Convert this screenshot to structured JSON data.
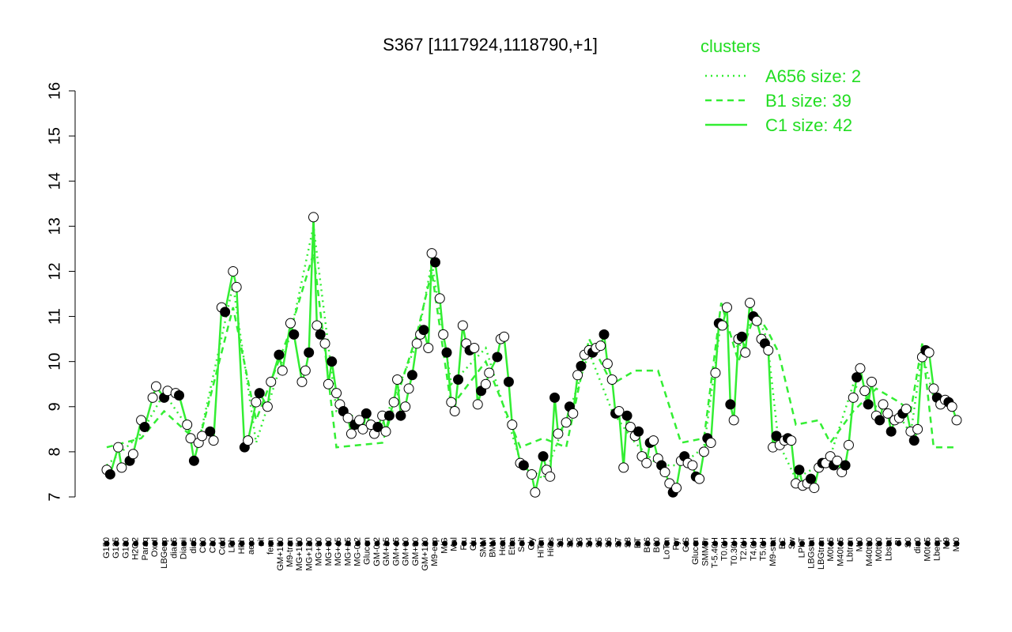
{
  "chart_data": {
    "type": "line",
    "title": "S367 [1117924,1118790,+1]",
    "xlabel": "",
    "ylabel": "",
    "ylim": [
      7,
      16
    ],
    "yticks": [
      7,
      8,
      9,
      10,
      11,
      12,
      13,
      14,
      15,
      16
    ],
    "legend": {
      "title": "clusters",
      "placement": "top-right",
      "entries": [
        {
          "label": "A656 size: 2",
          "style": "dotted"
        },
        {
          "label": "B1 size: 39",
          "style": "dashed"
        },
        {
          "label": "C1 size: 42",
          "style": "solid"
        }
      ]
    },
    "x_labels": [
      "G150",
      "G135",
      "G180",
      "H2O2",
      "Paraq",
      "Oxctl",
      "LBGexp",
      "dia15",
      "Diami",
      "dia5",
      "C90",
      "C30",
      "Cold",
      "LPh",
      "HPh",
      "aero",
      "nit",
      "ferm",
      "GM+150",
      "M9-tran",
      "MG+150",
      "MG+120",
      "MG+90",
      "MG+60",
      "MG+45",
      "MG+15",
      "MG-0.2",
      "Glucon",
      "GM-0.2",
      "GM+15",
      "GM+45",
      "GM+60",
      "GM+90",
      "GM+120",
      "M9-exp",
      "M/G",
      "Mal",
      "Fru",
      "Glu",
      "SMM",
      "BMM",
      "Heat",
      "Etha",
      "Salt",
      "Gly",
      "HiTm",
      "HiOs",
      "S1",
      "S2",
      "S3",
      "S4",
      "S5",
      "S6",
      "S7",
      "S8",
      "BT",
      "B36",
      "B60",
      "LoTm",
      "Pyr",
      "G/S",
      "Glucon",
      "SMMPr",
      "T-5.40H",
      "T0.0H",
      "T0.30H",
      "T2.0H",
      "T4.0H",
      "T5.0H",
      "M9-stat",
      "BC",
      "Sw",
      "LPhT",
      "LBGstat",
      "LBGtran",
      "M0t45",
      "M40t45",
      "Lbtran",
      "Mt0",
      "M40t90",
      "M0t90",
      "Lbstat",
      "BI",
      "S0",
      "dia0",
      "M0t45",
      "Lbexp",
      "M9",
      "Mt0"
    ],
    "series": [
      {
        "name": "C1 size: 42",
        "marker": "circle",
        "points": [
          [
            0,
            7.6
          ],
          [
            0.3,
            7.5
          ],
          [
            1,
            8.1
          ],
          [
            1.3,
            7.65
          ],
          [
            2,
            7.8
          ],
          [
            2.3,
            7.95
          ],
          [
            3,
            8.7
          ],
          [
            3.3,
            8.55
          ],
          [
            4,
            9.2
          ],
          [
            4.3,
            9.45
          ],
          [
            5,
            9.2
          ],
          [
            5.3,
            9.35
          ],
          [
            6,
            9.3
          ],
          [
            6.3,
            9.25
          ],
          [
            7,
            8.6
          ],
          [
            7.3,
            8.3
          ],
          [
            7.6,
            7.8
          ],
          [
            8,
            8.2
          ],
          [
            8.3,
            8.35
          ],
          [
            9,
            8.45
          ],
          [
            9.3,
            8.25
          ],
          [
            10,
            11.2
          ],
          [
            10.3,
            11.1
          ],
          [
            11,
            12.0
          ],
          [
            11.3,
            11.65
          ],
          [
            12,
            8.1
          ],
          [
            12.3,
            8.25
          ],
          [
            13,
            9.1
          ],
          [
            13.3,
            9.3
          ],
          [
            14,
            9.0
          ],
          [
            14.3,
            9.55
          ],
          [
            15,
            10.15
          ],
          [
            15.3,
            9.8
          ],
          [
            16,
            10.85
          ],
          [
            16.3,
            10.6
          ],
          [
            17,
            9.55
          ],
          [
            17.3,
            9.8
          ],
          [
            17.6,
            10.2
          ],
          [
            18,
            13.2
          ],
          [
            18.3,
            10.8
          ],
          [
            18.6,
            10.6
          ],
          [
            19,
            10.4
          ],
          [
            19.3,
            9.5
          ],
          [
            19.6,
            10.0
          ],
          [
            20,
            9.3
          ],
          [
            20.3,
            9.05
          ],
          [
            20.6,
            8.9
          ],
          [
            21,
            8.75
          ],
          [
            21.3,
            8.4
          ],
          [
            21.6,
            8.6
          ],
          [
            22,
            8.7
          ],
          [
            22.3,
            8.5
          ],
          [
            22.6,
            8.85
          ],
          [
            23,
            8.6
          ],
          [
            23.3,
            8.4
          ],
          [
            23.6,
            8.55
          ],
          [
            24,
            8.8
          ],
          [
            24.3,
            8.45
          ],
          [
            24.6,
            8.8
          ],
          [
            25,
            9.1
          ],
          [
            25.3,
            9.6
          ],
          [
            25.6,
            8.8
          ],
          [
            26,
            9.0
          ],
          [
            26.3,
            9.4
          ],
          [
            26.6,
            9.7
          ],
          [
            27,
            10.4
          ],
          [
            27.3,
            10.6
          ],
          [
            27.6,
            10.7
          ],
          [
            28,
            10.3
          ],
          [
            28.3,
            12.4
          ],
          [
            28.6,
            12.2
          ],
          [
            29,
            11.4
          ],
          [
            29.3,
            10.6
          ],
          [
            29.6,
            10.2
          ],
          [
            30,
            9.1
          ],
          [
            30.3,
            8.9
          ],
          [
            30.6,
            9.6
          ],
          [
            31,
            10.8
          ],
          [
            31.3,
            10.4
          ],
          [
            31.6,
            10.25
          ],
          [
            32,
            10.3
          ],
          [
            32.3,
            9.05
          ],
          [
            32.6,
            9.35
          ],
          [
            33,
            9.5
          ],
          [
            33.3,
            9.75
          ],
          [
            34,
            10.1
          ],
          [
            34.3,
            10.5
          ],
          [
            34.6,
            10.55
          ],
          [
            35,
            9.55
          ],
          [
            35.3,
            8.6
          ],
          [
            36,
            7.75
          ],
          [
            36.3,
            7.7
          ],
          [
            37,
            7.5
          ],
          [
            37.3,
            7.1
          ],
          [
            38,
            7.9
          ],
          [
            38.3,
            7.6
          ],
          [
            38.6,
            7.45
          ],
          [
            39,
            9.2
          ],
          [
            39.3,
            8.4
          ],
          [
            40,
            8.65
          ],
          [
            40.3,
            9.0
          ],
          [
            40.6,
            8.85
          ],
          [
            41,
            9.7
          ],
          [
            41.3,
            9.9
          ],
          [
            41.6,
            10.15
          ],
          [
            42,
            10.25
          ],
          [
            42.3,
            10.2
          ],
          [
            42.6,
            10.3
          ],
          [
            43,
            10.35
          ],
          [
            43.3,
            10.6
          ],
          [
            43.6,
            9.95
          ],
          [
            44,
            9.6
          ],
          [
            44.3,
            8.85
          ],
          [
            44.6,
            8.9
          ],
          [
            45,
            7.65
          ],
          [
            45.3,
            8.8
          ],
          [
            45.6,
            8.55
          ],
          [
            46,
            8.35
          ],
          [
            46.3,
            8.45
          ],
          [
            46.6,
            7.9
          ],
          [
            47,
            7.75
          ],
          [
            47.3,
            8.2
          ],
          [
            47.6,
            8.25
          ],
          [
            48,
            7.85
          ],
          [
            48.3,
            7.7
          ],
          [
            48.6,
            7.55
          ],
          [
            49,
            7.3
          ],
          [
            49.3,
            7.1
          ],
          [
            49.6,
            7.2
          ],
          [
            50,
            7.8
          ],
          [
            50.3,
            7.9
          ],
          [
            50.6,
            7.75
          ],
          [
            51,
            7.7
          ],
          [
            51.3,
            7.45
          ],
          [
            51.6,
            7.4
          ],
          [
            52,
            8.0
          ],
          [
            52.3,
            8.3
          ],
          [
            52.6,
            8.2
          ],
          [
            53,
            9.75
          ],
          [
            53.3,
            10.85
          ],
          [
            53.6,
            10.8
          ],
          [
            54,
            11.2
          ],
          [
            54.3,
            9.05
          ],
          [
            54.6,
            8.7
          ],
          [
            55,
            10.5
          ],
          [
            55.3,
            10.55
          ],
          [
            55.6,
            10.2
          ],
          [
            56,
            11.3
          ],
          [
            56.3,
            11.0
          ],
          [
            56.6,
            10.9
          ],
          [
            57,
            10.5
          ],
          [
            57.3,
            10.4
          ],
          [
            57.6,
            10.25
          ],
          [
            58,
            8.1
          ],
          [
            58.3,
            8.35
          ],
          [
            58.6,
            8.15
          ],
          [
            59,
            8.25
          ],
          [
            59.3,
            8.3
          ],
          [
            59.6,
            8.25
          ],
          [
            60,
            7.3
          ],
          [
            60.3,
            7.6
          ],
          [
            60.6,
            7.25
          ],
          [
            61,
            7.3
          ],
          [
            61.3,
            7.4
          ],
          [
            61.6,
            7.2
          ],
          [
            62,
            7.65
          ],
          [
            62.3,
            7.75
          ],
          [
            62.6,
            7.75
          ],
          [
            63,
            7.9
          ],
          [
            63.3,
            7.7
          ],
          [
            63.6,
            7.8
          ],
          [
            64,
            7.55
          ],
          [
            64.3,
            7.7
          ],
          [
            64.6,
            8.15
          ],
          [
            65,
            9.2
          ],
          [
            65.3,
            9.65
          ],
          [
            65.6,
            9.85
          ],
          [
            66,
            9.35
          ],
          [
            66.3,
            9.05
          ],
          [
            66.6,
            9.55
          ],
          [
            67,
            8.8
          ],
          [
            67.3,
            8.7
          ],
          [
            67.6,
            9.05
          ],
          [
            68,
            8.85
          ],
          [
            68.3,
            8.45
          ],
          [
            68.6,
            8.7
          ],
          [
            69,
            8.75
          ],
          [
            69.3,
            8.85
          ],
          [
            69.6,
            8.95
          ],
          [
            70,
            8.45
          ],
          [
            70.3,
            8.25
          ],
          [
            70.6,
            8.5
          ],
          [
            71,
            10.1
          ],
          [
            71.3,
            10.25
          ],
          [
            71.6,
            10.2
          ],
          [
            72,
            9.4
          ],
          [
            72.3,
            9.2
          ],
          [
            72.6,
            9.05
          ],
          [
            73,
            9.15
          ],
          [
            73.3,
            9.1
          ],
          [
            73.6,
            9.0
          ],
          [
            74,
            8.7
          ]
        ]
      },
      {
        "name": "B1 size: 39",
        "points": [
          [
            0,
            8.1
          ],
          [
            3,
            8.3
          ],
          [
            5,
            8.9
          ],
          [
            8,
            8.2
          ],
          [
            11,
            11.2
          ],
          [
            13,
            8.7
          ],
          [
            16,
            10.7
          ],
          [
            18,
            12.4
          ],
          [
            20,
            8.1
          ],
          [
            24,
            8.2
          ],
          [
            27,
            10.6
          ],
          [
            28.3,
            12.0
          ],
          [
            30,
            9.0
          ],
          [
            33,
            10.0
          ],
          [
            36,
            8.1
          ],
          [
            38,
            8.3
          ],
          [
            40,
            8.1
          ],
          [
            42,
            10.5
          ],
          [
            44,
            9.5
          ],
          [
            46,
            9.8
          ],
          [
            48,
            9.8
          ],
          [
            50,
            8.2
          ],
          [
            52,
            8.3
          ],
          [
            53.5,
            11.3
          ],
          [
            55,
            10.0
          ],
          [
            56.5,
            11.1
          ],
          [
            57.5,
            10.7
          ],
          [
            58.5,
            10.2
          ],
          [
            60,
            8.6
          ],
          [
            62,
            8.7
          ],
          [
            63,
            8.2
          ],
          [
            65,
            8.9
          ],
          [
            67,
            9.4
          ],
          [
            69,
            9.1
          ],
          [
            70,
            8.9
          ],
          [
            71,
            10.4
          ],
          [
            72,
            8.1
          ],
          [
            74,
            8.1
          ]
        ]
      },
      {
        "name": "A656 size: 2",
        "points": [
          [
            0,
            7.7
          ],
          [
            3,
            8.4
          ],
          [
            5,
            9.3
          ],
          [
            8,
            8.2
          ],
          [
            11,
            11.7
          ],
          [
            13,
            8.2
          ],
          [
            16,
            10.6
          ],
          [
            18,
            13.0
          ],
          [
            20,
            8.9
          ],
          [
            24,
            8.6
          ],
          [
            27,
            10.4
          ],
          [
            28.3,
            12.2
          ],
          [
            30,
            9.5
          ],
          [
            33,
            10.3
          ],
          [
            36,
            7.8
          ],
          [
            38,
            7.4
          ],
          [
            40,
            8.7
          ],
          [
            42,
            10.2
          ],
          [
            44,
            8.9
          ],
          [
            46,
            8.2
          ],
          [
            48,
            7.7
          ],
          [
            50,
            7.7
          ],
          [
            52,
            8.1
          ],
          [
            53.5,
            10.9
          ],
          [
            55,
            10.3
          ],
          [
            56.5,
            11.1
          ],
          [
            57.5,
            10.5
          ],
          [
            58.5,
            8.2
          ],
          [
            60,
            7.4
          ],
          [
            62,
            7.7
          ],
          [
            63,
            7.9
          ],
          [
            65,
            9.5
          ],
          [
            67,
            9.0
          ],
          [
            69,
            8.8
          ],
          [
            70,
            8.4
          ],
          [
            71,
            10.2
          ],
          [
            72,
            9.2
          ],
          [
            74,
            8.9
          ]
        ]
      }
    ],
    "colors": {
      "line": "#33ee33",
      "marker_stroke": "#000000",
      "marker_fill": "#ffffff",
      "dark_marker_fill": "#000000"
    }
  }
}
